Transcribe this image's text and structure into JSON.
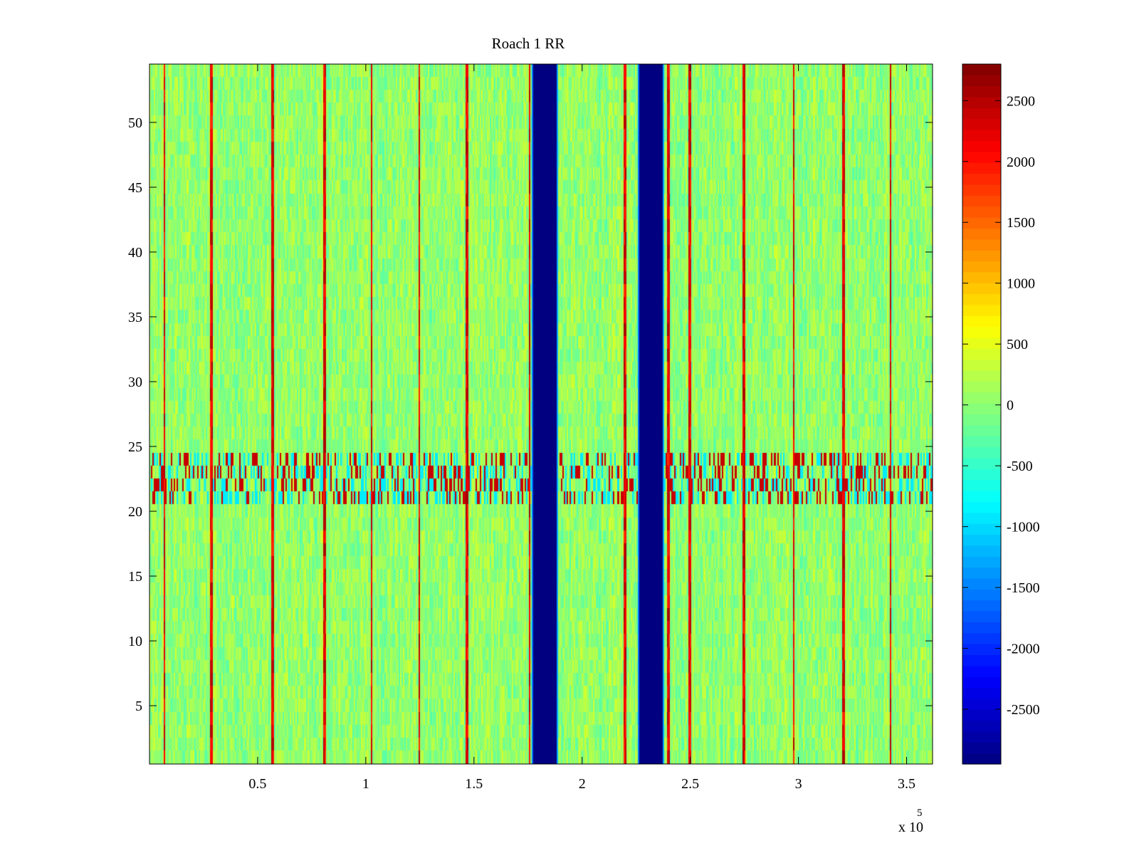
{
  "chart_data": {
    "type": "heatmap",
    "title": "Roach 1 RR",
    "xlabel": "",
    "ylabel": "",
    "x_exponent_label": "x 10",
    "x_exponent_power": "5",
    "xlim": [
      0,
      3.62
    ],
    "ylim": [
      0.5,
      54.5
    ],
    "x_ticks": [
      0.5,
      1,
      1.5,
      2,
      2.5,
      3,
      3.5
    ],
    "x_tick_labels": [
      "0.5",
      "1",
      "1.5",
      "2",
      "2.5",
      "3",
      "3.5"
    ],
    "y_ticks": [
      5,
      10,
      15,
      20,
      25,
      30,
      35,
      40,
      45,
      50
    ],
    "y_tick_labels": [
      "5",
      "10",
      "15",
      "20",
      "25",
      "30",
      "35",
      "40",
      "45",
      "50"
    ],
    "rows": 54,
    "colormap": "jet",
    "clim": [
      -2950,
      2800
    ],
    "colorbar": {
      "ticks": [
        2500,
        2000,
        1500,
        1000,
        500,
        0,
        -500,
        -1000,
        -1500,
        -2000,
        -2500
      ],
      "tick_labels": [
        "2500",
        "2000",
        "1500",
        "1000",
        "500",
        "0",
        "-500",
        "-1000",
        "-1500",
        "-2000",
        "-2500"
      ]
    },
    "background_value_range": [
      -700,
      600
    ],
    "blue_bands": [
      {
        "x_start": 1.775,
        "x_end": 1.885,
        "value": -2950
      },
      {
        "x_start": 2.265,
        "x_end": 2.37,
        "value": -2950
      }
    ],
    "hot_stripes_x": [
      0.07,
      0.29,
      0.57,
      0.81,
      1.03,
      1.25,
      1.47,
      1.76,
      2.2,
      2.4,
      2.5,
      2.75,
      2.98,
      3.21,
      3.43
    ],
    "hot_stripe_value": 2600,
    "noisy_row_band": {
      "y_start": 21.5,
      "y_end": 23.5
    }
  }
}
